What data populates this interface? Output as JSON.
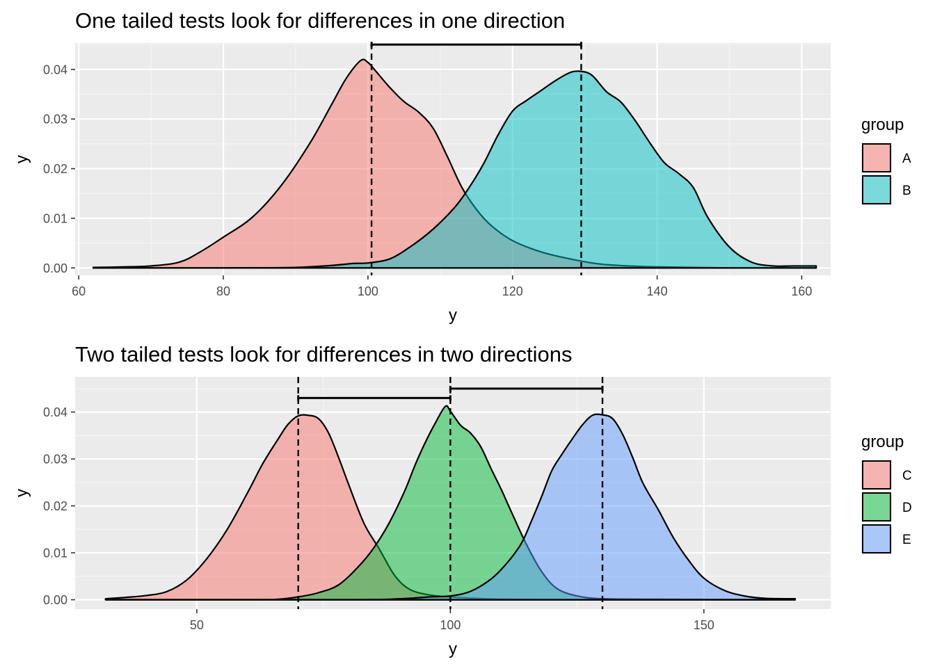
{
  "chart_data": [
    {
      "type": "area",
      "title": "One tailed tests look for differences in one direction",
      "xlabel": "y",
      "ylabel": "y",
      "xlim": [
        59.5,
        164
      ],
      "ylim": [
        -0.0015,
        0.0453
      ],
      "x_ticks": [
        "60",
        "80",
        "100",
        "120",
        "140",
        "160"
      ],
      "y_ticks": [
        "0.00",
        "0.01",
        "0.02",
        "0.03",
        "0.04"
      ],
      "grid": true,
      "legend": {
        "title": "group",
        "position": "right",
        "labels": [
          "A",
          "B"
        ]
      },
      "colors": {
        "A": "#F8766D",
        "B": "#00BFC4"
      },
      "series": [
        {
          "name": "A",
          "x": [
            62,
            66,
            70,
            74,
            77,
            80,
            84,
            88,
            92,
            95,
            97,
            99,
            100,
            101,
            103,
            105,
            107,
            109,
            111,
            113,
            115,
            117,
            120,
            124,
            128,
            132,
            136,
            140,
            145,
            150,
            155,
            162
          ],
          "y": [
            0.0001,
            0.0002,
            0.0004,
            0.0012,
            0.0034,
            0.0062,
            0.0102,
            0.0166,
            0.0252,
            0.033,
            0.0382,
            0.0418,
            0.0414,
            0.0398,
            0.0364,
            0.0335,
            0.0314,
            0.0282,
            0.0224,
            0.0162,
            0.0118,
            0.0086,
            0.0055,
            0.0032,
            0.0018,
            0.0008,
            0.0004,
            0.0002,
            0.0001,
            0.0,
            0.0,
            0.0
          ]
        },
        {
          "name": "B",
          "x": [
            62,
            80,
            90,
            95,
            98,
            100,
            103,
            106,
            109,
            112,
            114,
            116,
            118,
            120,
            122,
            124,
            126,
            128,
            129.5,
            131,
            133,
            135,
            137,
            139,
            141,
            143,
            145,
            147,
            150,
            153,
            156,
            159,
            162
          ],
          "y": [
            0.0,
            0.0,
            0.0001,
            0.0005,
            0.0009,
            0.001,
            0.0018,
            0.0044,
            0.0078,
            0.0122,
            0.0162,
            0.021,
            0.0268,
            0.0316,
            0.0338,
            0.0358,
            0.0378,
            0.0394,
            0.0396,
            0.0388,
            0.0355,
            0.0334,
            0.0296,
            0.0252,
            0.0212,
            0.019,
            0.0162,
            0.0102,
            0.0042,
            0.0012,
            0.0004,
            0.0004,
            0.0004
          ]
        }
      ],
      "reference_lines": [
        {
          "x": 100.5,
          "style": "dashed"
        },
        {
          "x": 129.5,
          "style": "dashed"
        }
      ],
      "brackets": [
        {
          "x_start": 100.5,
          "x_end": 129.5,
          "y": 0.045
        }
      ]
    },
    {
      "type": "area",
      "title": "Two tailed tests look for differences in two directions",
      "xlabel": "y",
      "ylabel": "y",
      "xlim": [
        26,
        175
      ],
      "ylim": [
        -0.002,
        0.0475
      ],
      "x_ticks": [
        "50",
        "100",
        "150"
      ],
      "y_ticks": [
        "0.00",
        "0.01",
        "0.02",
        "0.03",
        "0.04"
      ],
      "grid": true,
      "legend": {
        "title": "group",
        "position": "right",
        "labels": [
          "C",
          "D",
          "E"
        ]
      },
      "colors": {
        "C": "#F8766D",
        "D": "#00BA38",
        "E": "#619CFF"
      },
      "series": [
        {
          "name": "C",
          "x": [
            32,
            36,
            40,
            44,
            48,
            52,
            56,
            60,
            63,
            66,
            68,
            70,
            72,
            74,
            76,
            78,
            80,
            83,
            86,
            89,
            92,
            96,
            100,
            105,
            110,
            120,
            140,
            168
          ],
          "y": [
            0.0002,
            0.0005,
            0.0009,
            0.0017,
            0.0042,
            0.0088,
            0.015,
            0.0228,
            0.029,
            0.0342,
            0.0374,
            0.0392,
            0.0393,
            0.0386,
            0.0355,
            0.0302,
            0.0244,
            0.0162,
            0.0108,
            0.0052,
            0.0022,
            0.001,
            0.0006,
            0.0003,
            0.0001,
            0.0,
            0.0,
            0.0
          ]
        },
        {
          "name": "D",
          "x": [
            32,
            60,
            66,
            70,
            74,
            78,
            82,
            85,
            88,
            91,
            93,
            95,
            97,
            99,
            100,
            102,
            104,
            106,
            108,
            110,
            112,
            115,
            118,
            121,
            125,
            130,
            140,
            168
          ],
          "y": [
            0.0,
            0.0,
            0.0001,
            0.0006,
            0.0015,
            0.0032,
            0.0072,
            0.0112,
            0.0165,
            0.0232,
            0.0286,
            0.0334,
            0.0376,
            0.0412,
            0.0402,
            0.0372,
            0.0355,
            0.0326,
            0.028,
            0.0236,
            0.0188,
            0.0118,
            0.006,
            0.0024,
            0.0008,
            0.0002,
            0.0001,
            0.0
          ]
        },
        {
          "name": "E",
          "x": [
            32,
            80,
            90,
            96,
            100,
            104,
            108,
            111,
            114,
            116,
            118,
            120,
            122,
            124,
            126,
            128,
            130,
            132,
            134,
            136,
            138,
            141,
            144,
            147,
            150,
            154,
            158,
            162,
            168
          ],
          "y": [
            0.0,
            0.0,
            0.0002,
            0.0006,
            0.0008,
            0.0018,
            0.0044,
            0.0076,
            0.012,
            0.0168,
            0.022,
            0.0275,
            0.031,
            0.0342,
            0.0372,
            0.0393,
            0.0394,
            0.0386,
            0.0352,
            0.0302,
            0.0248,
            0.0192,
            0.0132,
            0.0084,
            0.0046,
            0.002,
            0.0008,
            0.0003,
            0.0002
          ]
        }
      ],
      "reference_lines": [
        {
          "x": 70,
          "style": "dashed"
        },
        {
          "x": 100,
          "style": "dashed"
        },
        {
          "x": 130,
          "style": "dashed"
        }
      ],
      "brackets": [
        {
          "x_start": 70,
          "x_end": 100,
          "y": 0.043
        },
        {
          "x_start": 100,
          "x_end": 130,
          "y": 0.045
        }
      ]
    }
  ]
}
